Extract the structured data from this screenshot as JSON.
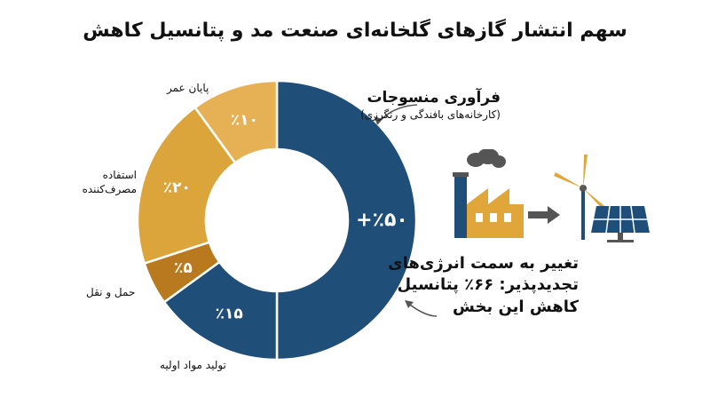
{
  "title": "سهم انتشار گازهای گلخانه‌ای صنعت مد و پتانسیل کاهش",
  "chart_data": {
    "type": "pie",
    "variant": "donut",
    "categories": [
      "فرآوری منسوجات",
      "تولید مواد اولیه",
      "حمل و نقل",
      "استفاده مصرف‌کننده",
      "پایان عمر"
    ],
    "values": [
      50,
      15,
      5,
      20,
      10
    ],
    "value_labels": [
      "٪۵۰+",
      "٪۱۵",
      "٪۵",
      "٪۲۰",
      "٪۱۰"
    ],
    "colors": [
      "#1f4e79",
      "#1f4e79",
      "#b8791f",
      "#dba53c",
      "#e6b155"
    ]
  },
  "labels": {
    "end_of_life": "پایان عمر",
    "consumer_use": "استفاده مصرف‌کننده",
    "transport": "حمل و نقل",
    "raw_materials": "تولید مواد اولیه"
  },
  "callouts": {
    "textile_title": "فرآوری منسوجات",
    "textile_sub": "(کارخانه‌های بافندگی و رنگرزی)",
    "shift_text": "تغییر به سمت انرژی‌های تجدیدپذیر: ۶۶٪ پتانسیل کاهش این بخش"
  },
  "icons": [
    "factory-icon",
    "arrow-right-icon",
    "wind-turbine-icon",
    "solar-panel-icon"
  ]
}
